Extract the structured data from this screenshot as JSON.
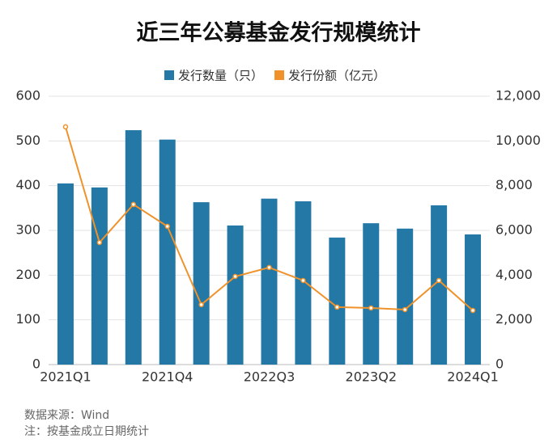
{
  "chart_data": {
    "type": "bar-line",
    "title": "近三年公募基金发行规模统计",
    "categories": [
      "2021Q1",
      null,
      null,
      "2021Q4",
      null,
      null,
      "2022Q3",
      null,
      null,
      "2023Q2",
      null,
      null,
      "2024Q1"
    ],
    "series": [
      {
        "name": "发行数量（只）",
        "type": "bar",
        "color": "#2378a6",
        "axis": "y",
        "values": [
          405,
          396,
          524,
          503,
          363,
          311,
          371,
          365,
          284,
          316,
          304,
          356,
          291
        ]
      },
      {
        "name": "发行份额（亿元）",
        "type": "line",
        "color": "#f0922b",
        "axis": "y2",
        "values": [
          10630,
          5460,
          7160,
          6180,
          2680,
          3940,
          4340,
          3760,
          2570,
          2530,
          2460,
          3760,
          2420
        ]
      }
    ],
    "ylim": [
      0,
      600
    ],
    "yticks": [
      0,
      100,
      200,
      300,
      400,
      500,
      600
    ],
    "y2lim": [
      0,
      12000
    ],
    "y2ticks": [
      0,
      {
        "value": 2000,
        "label": "2,000"
      },
      {
        "value": 4000,
        "label": "4,000"
      },
      {
        "value": 6000,
        "label": "6,000"
      },
      {
        "value": 8000,
        "label": "8,000"
      },
      {
        "value": 10000,
        "label": "10,000"
      },
      {
        "value": 12000,
        "label": "12,000"
      }
    ],
    "grid": true,
    "legend": "top",
    "source": "数据来源：Wind",
    "note": "注：按基金成立日期统计"
  }
}
